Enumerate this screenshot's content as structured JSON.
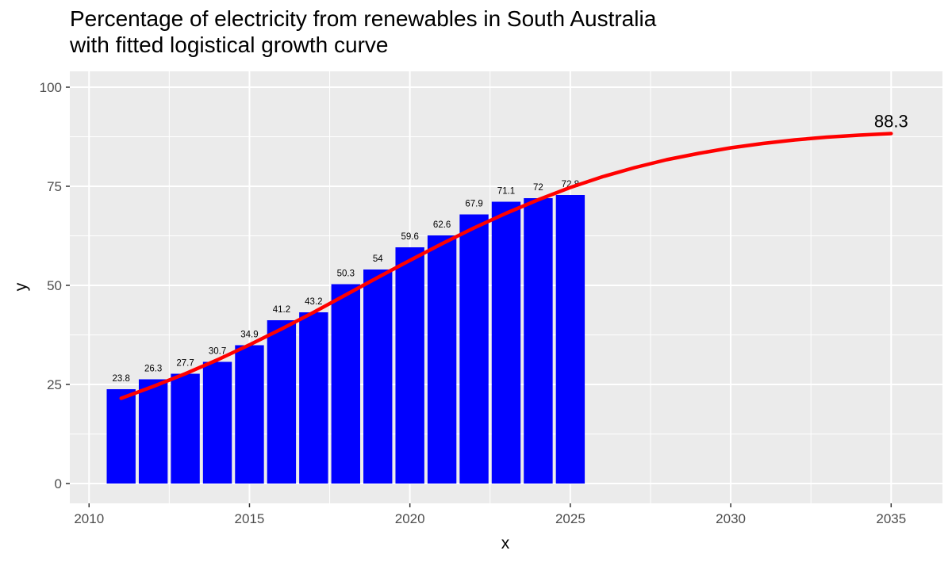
{
  "chart_data": {
    "type": "bar",
    "title": "Percentage of electricity from renewables in South Australia",
    "subtitle": "with fitted logistical growth curve",
    "xlabel": "x",
    "ylabel": "y",
    "xlim": [
      2009.4,
      2036.6
    ],
    "ylim": [
      -5,
      104
    ],
    "x_ticks": [
      2010,
      2015,
      2020,
      2025,
      2030,
      2035
    ],
    "y_ticks": [
      0,
      25,
      50,
      75,
      100
    ],
    "grid": true,
    "bar_color": "#0000ff",
    "curve_color": "#ff0000",
    "panel_color": "#ebebeb",
    "bars": {
      "x": [
        2011,
        2012,
        2013,
        2014,
        2015,
        2016,
        2017,
        2018,
        2019,
        2020,
        2021,
        2022,
        2023,
        2024,
        2025
      ],
      "values": [
        23.8,
        26.3,
        27.7,
        30.7,
        34.9,
        41.2,
        43.2,
        50.3,
        54,
        59.6,
        62.6,
        67.9,
        71.1,
        72,
        72.8
      ],
      "labels": [
        "23.8",
        "26.3",
        "27.7",
        "30.7",
        "34.9",
        "41.2",
        "43.2",
        "50.3",
        "54",
        "59.6",
        "62.6",
        "67.9",
        "71.1",
        "72",
        "72.8"
      ]
    },
    "fitted_curve": {
      "name": "fitted logistical growth curve",
      "x": [
        2011,
        2012,
        2013,
        2014,
        2015,
        2016,
        2017,
        2018,
        2019,
        2020,
        2021,
        2022,
        2023,
        2024,
        2025,
        2026,
        2027,
        2028,
        2029,
        2030,
        2031,
        2032,
        2033,
        2034,
        2035
      ],
      "values": [
        21.5,
        24.5,
        27.7,
        31.2,
        35.0,
        39.0,
        43.2,
        47.6,
        52.0,
        56.3,
        60.5,
        64.5,
        68.2,
        71.6,
        74.7,
        77.4,
        79.7,
        81.7,
        83.3,
        84.7,
        85.8,
        86.7,
        87.4,
        87.9,
        88.3
      ],
      "end_label": "88.3"
    }
  }
}
